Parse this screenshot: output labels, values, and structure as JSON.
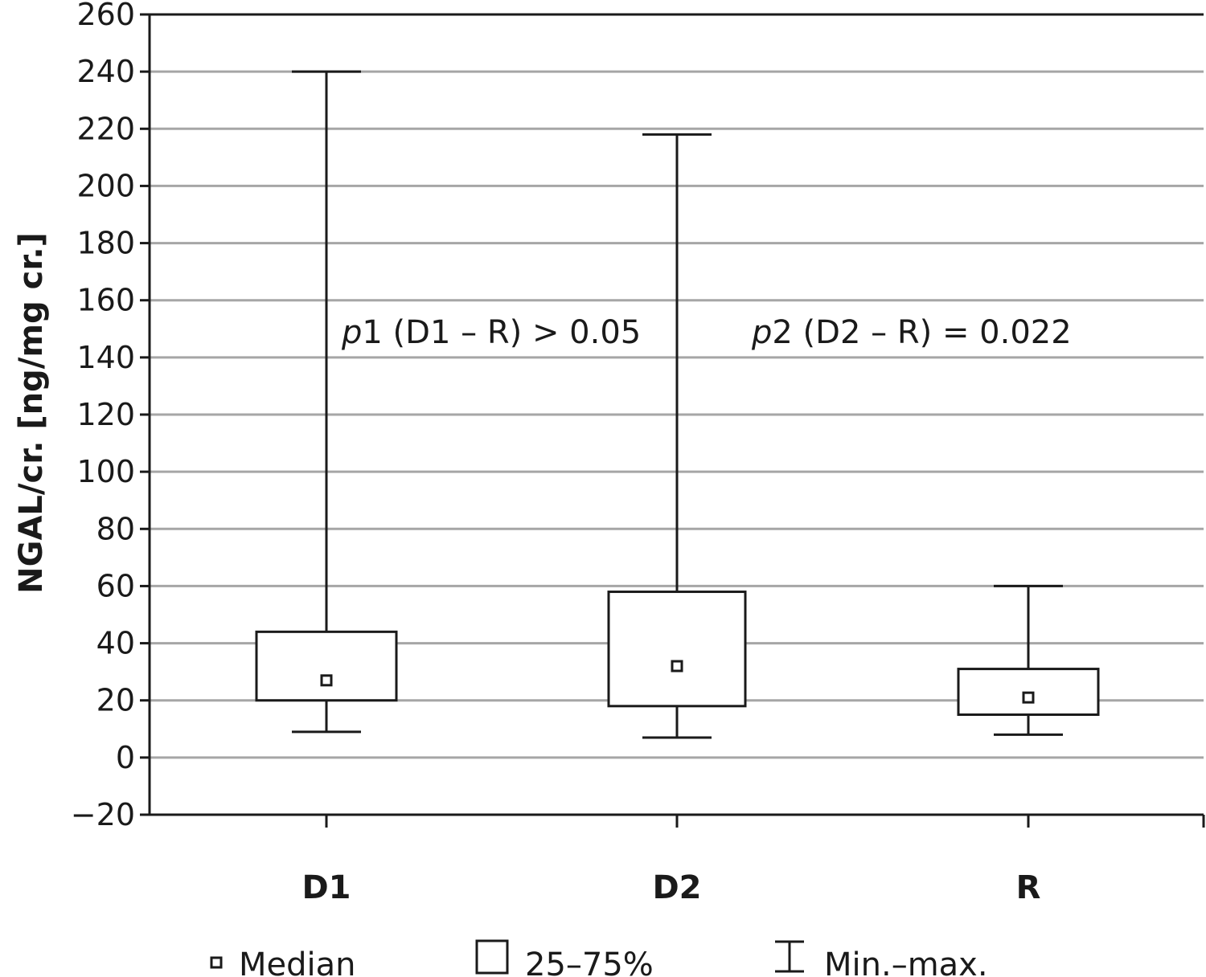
{
  "chart_data": {
    "type": "box",
    "ylabel": "NGAL/cr. [ng/mg cr.]",
    "xlabel": "",
    "ylim": [
      -20,
      260
    ],
    "yticks": [
      -20,
      0,
      20,
      40,
      60,
      80,
      100,
      120,
      140,
      160,
      180,
      200,
      220,
      240,
      260
    ],
    "ytick_labels": [
      "−20",
      "0",
      "20",
      "40",
      "60",
      "80",
      "100",
      "120",
      "140",
      "160",
      "180",
      "200",
      "220",
      "240",
      "260"
    ],
    "grid": true,
    "categories": [
      "D1",
      "D2",
      "R"
    ],
    "boxes": [
      {
        "category": "D1",
        "min": 9,
        "q1": 20,
        "median": 27,
        "q3": 44,
        "max": 240
      },
      {
        "category": "D2",
        "min": 7,
        "q1": 18,
        "median": 32,
        "q3": 58,
        "max": 218
      },
      {
        "category": "R",
        "min": 8,
        "q1": 15,
        "median": 21,
        "q3": 31,
        "max": 60
      }
    ],
    "annotations": [
      {
        "italic": "p",
        "text": "1 (D1 – R) > 0.05"
      },
      {
        "italic": "p",
        "text": "2 (D2 – R) = 0.022"
      }
    ],
    "legend": {
      "placement": "bottom",
      "items": [
        {
          "symbol": "median",
          "label": "Median"
        },
        {
          "symbol": "box",
          "label": "25–75%"
        },
        {
          "symbol": "whisker",
          "label": "Min.–max."
        }
      ]
    },
    "colors": {
      "grid": "#a6a6a6",
      "axis": "#1a1a1a",
      "box_fill": "#ffffff"
    }
  }
}
